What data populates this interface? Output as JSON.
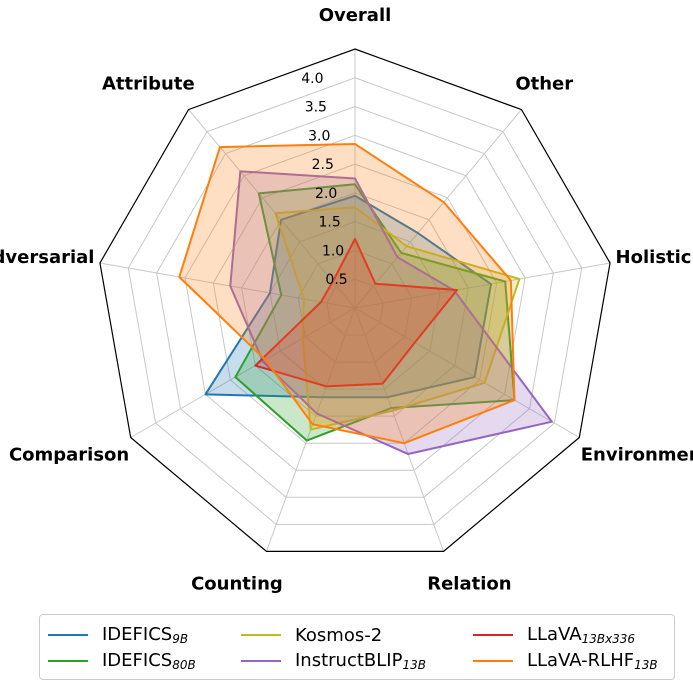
{
  "chart_data": {
    "type": "radar",
    "axes": [
      "Overall",
      "Other",
      "Holistic",
      "Environment",
      "Relation",
      "Counting",
      "Comparison",
      "Adversarial",
      "Attribute"
    ],
    "rlim": [
      0,
      4.5
    ],
    "rticks": [
      0.5,
      1.0,
      1.5,
      2.0,
      2.5,
      3.0,
      3.5,
      4.0
    ],
    "rtick_labels": [
      "0.5",
      "1.0",
      "1.5",
      "2.0",
      "2.5",
      "3.0",
      "3.5",
      "4.0"
    ],
    "grid": true,
    "legend_position": "bottom",
    "series": [
      {
        "name": "IDEFICS",
        "subscript": "9B",
        "color": "#1f77b4",
        "values": [
          1.95,
          1.7,
          2.4,
          2.4,
          1.65,
          1.65,
          3.0,
          1.5,
          2.0
        ]
      },
      {
        "name": "IDEFICS",
        "subscript": "80B",
        "color": "#2ca02c",
        "values": [
          2.15,
          1.25,
          2.65,
          3.2,
          1.85,
          2.45,
          2.4,
          1.3,
          2.6
        ]
      },
      {
        "name": "Kosmos-2",
        "subscript": "",
        "color": "#bcbd22",
        "values": [
          1.75,
          1.4,
          2.9,
          2.6,
          1.9,
          2.25,
          1.05,
          0.9,
          2.15
        ]
      },
      {
        "name": "InstructBLIP",
        "subscript": "13B",
        "color": "#9467bd",
        "values": [
          2.25,
          1.15,
          1.75,
          3.95,
          2.7,
          1.95,
          1.85,
          2.2,
          3.1
        ]
      },
      {
        "name": "LLaVA",
        "subscript": "13Bx336",
        "color": "#d62728",
        "values": [
          1.2,
          0.55,
          1.8,
          1.2,
          1.4,
          1.45,
          2.0,
          0.6,
          0.6
        ]
      },
      {
        "name": "LLaVA-RLHF",
        "subscript": "13B",
        "color": "#ff7f0e",
        "values": [
          2.85,
          2.4,
          2.75,
          3.2,
          2.5,
          2.15,
          1.8,
          3.1,
          3.65
        ]
      }
    ]
  }
}
